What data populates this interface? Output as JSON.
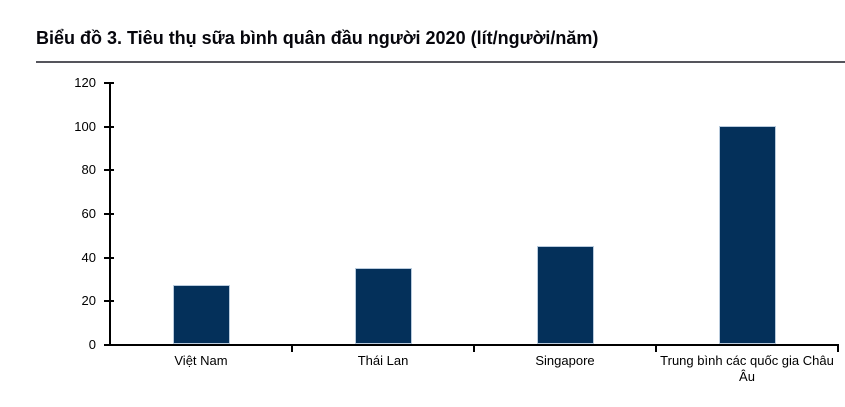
{
  "header": {
    "title": "Biểu đồ 3. Tiêu thụ sữa bình quân đầu người 2020 (lít/người/năm)"
  },
  "chart_data": {
    "type": "bar",
    "title": "Biểu đồ 3. Tiêu thụ sữa bình quân đầu người 2020 (lít/người/năm)",
    "categories": [
      "Việt Nam",
      "Thái Lan",
      "Singapore",
      "Trung bình các quốc gia Châu Âu"
    ],
    "values": [
      27,
      35,
      45,
      100
    ],
    "unit": "lít/người/năm",
    "xlabel": "",
    "ylabel": "",
    "ylim": [
      0,
      120
    ],
    "yticks": [
      0,
      20,
      40,
      60,
      80,
      100,
      120
    ],
    "grid": false,
    "legend": false,
    "colors": {
      "bar_fill": "#04305a",
      "bar_border": "#b9cbdd",
      "axis": "#000000",
      "title_text": "#06060c",
      "divider": "#55555c"
    }
  }
}
